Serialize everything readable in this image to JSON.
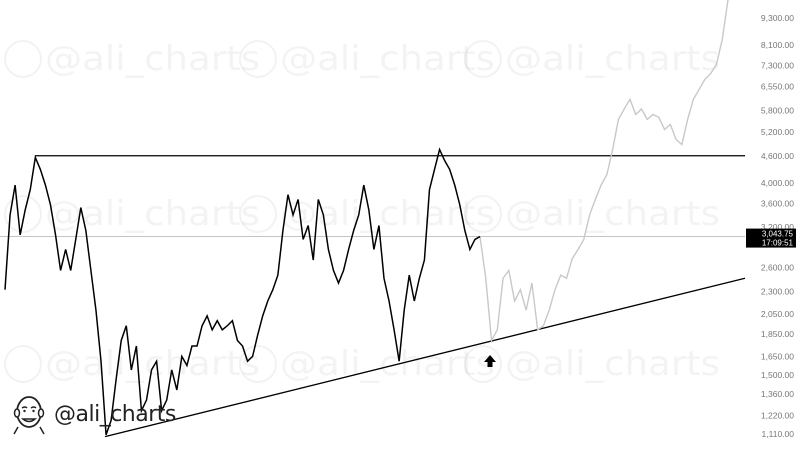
{
  "brand": {
    "handle": "@ali_charts",
    "watermark": "@ali_charts"
  },
  "chart_data": {
    "type": "line",
    "title": "",
    "xlabel": "",
    "ylabel": "",
    "y_scale": "log",
    "ylim": [
      1050,
      10200
    ],
    "y_ticks": [
      {
        "value": 9300,
        "label": "9,300.00"
      },
      {
        "value": 8100,
        "label": "8,100.00"
      },
      {
        "value": 7300,
        "label": "7,300.00"
      },
      {
        "value": 6550,
        "label": "6,550.00"
      },
      {
        "value": 5800,
        "label": "5,800.00"
      },
      {
        "value": 5200,
        "label": "5,200.00"
      },
      {
        "value": 4600,
        "label": "4,600.00"
      },
      {
        "value": 4000,
        "label": "4,000.00"
      },
      {
        "value": 3600,
        "label": "3,600.00"
      },
      {
        "value": 3200,
        "label": "3,200.00"
      },
      {
        "value": 2600,
        "label": "2,600.00"
      },
      {
        "value": 2300,
        "label": "2,300.00"
      },
      {
        "value": 2050,
        "label": "2,050.00"
      },
      {
        "value": 1850,
        "label": "1,850.00"
      },
      {
        "value": 1650,
        "label": "1,650.00"
      },
      {
        "value": 1500,
        "label": "1,500.00"
      },
      {
        "value": 1360,
        "label": "1,360.00"
      },
      {
        "value": 1220,
        "label": "1,220.00"
      },
      {
        "value": 1110,
        "label": "1,110.00"
      }
    ],
    "grid": false,
    "current_price": {
      "value": 3043.75,
      "label": "3,043.75",
      "time": "17:09:51"
    },
    "series": [
      {
        "role": "price",
        "color": "#000000",
        "values": [
          2320,
          3400,
          3960,
          3070,
          3490,
          3870,
          4560,
          4290,
          3960,
          3580,
          3070,
          2560,
          2850,
          2560,
          3000,
          3530,
          3140,
          2560,
          2090,
          1610,
          1105,
          1190,
          1470,
          1790,
          1930,
          1540,
          1740,
          1250,
          1320,
          1540,
          1610,
          1250,
          1320,
          1540,
          1390,
          1650,
          1575,
          1740,
          1740,
          1930,
          2030,
          1890,
          1980,
          1890,
          1930,
          1980,
          1790,
          1740,
          1610,
          1650,
          1840,
          2030,
          2190,
          2320,
          2500,
          3140,
          3770,
          3400,
          3680,
          3000,
          3220,
          2700,
          3680,
          3400,
          2850,
          2560,
          2400,
          2560,
          2850,
          3140,
          3400,
          3960,
          3490,
          2850,
          3220,
          2460,
          2190,
          1890,
          1610,
          2090,
          2500,
          2190,
          2460,
          2700,
          3870,
          4290,
          4750,
          4490,
          4290,
          3960,
          3580,
          3140,
          2850,
          3000,
          3044
        ]
      },
      {
        "role": "projection",
        "color": "#c8c8c8",
        "values": [
          3044,
          2460,
          1790,
          1890,
          2460,
          2560,
          2190,
          2320,
          2090,
          2400,
          1890,
          1930,
          2090,
          2320,
          2500,
          2460,
          2720,
          2850,
          3000,
          3400,
          3680,
          3960,
          4180,
          4750,
          5540,
          5840,
          6140,
          5680,
          5840,
          5540,
          5680,
          5600,
          5260,
          5400,
          5000,
          4870,
          5540,
          6140,
          6460,
          6800,
          7000,
          7340,
          8330,
          10200
        ]
      }
    ],
    "annotations": [
      {
        "type": "horizontal-resistance",
        "value": 4600
      },
      {
        "type": "ascending-support",
        "from": 1095,
        "to": 2460
      },
      {
        "type": "up-arrow",
        "near_value": 1750
      }
    ],
    "colors": {
      "price": "#000000",
      "projection": "#c8c8c8",
      "axis_text": "#777777",
      "label_bg": "#000000"
    }
  }
}
